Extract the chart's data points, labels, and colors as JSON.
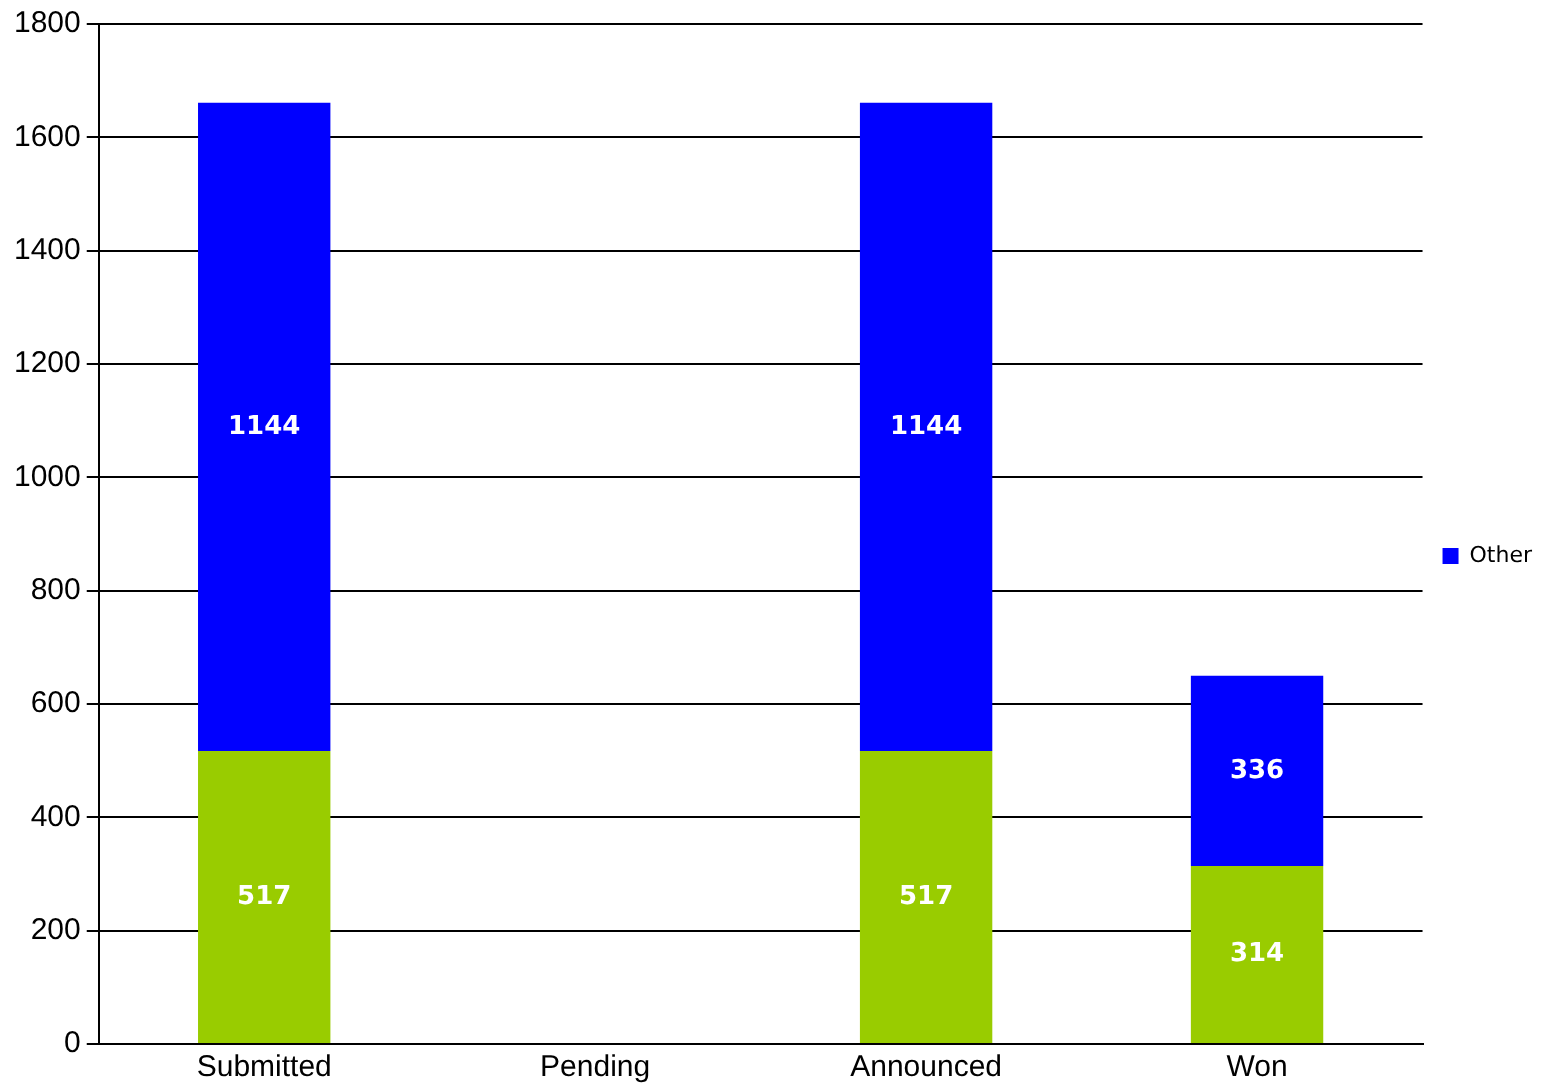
{
  "chart_data": {
    "type": "bar",
    "stacked": true,
    "categories": [
      "Submitted",
      "Pending",
      "Announced",
      "Won"
    ],
    "series": [
      {
        "color": "#99cc00",
        "values": [
          517,
          0,
          517,
          314
        ],
        "value_labels": [
          "517",
          null,
          "517",
          "314"
        ]
      },
      {
        "name": "Other",
        "color": "#0000ff",
        "values": [
          1144,
          0,
          1144,
          336
        ],
        "value_labels": [
          "1144",
          null,
          "1144",
          "336"
        ]
      }
    ],
    "ylim": [
      0,
      1800
    ],
    "yticks": [
      0,
      200,
      400,
      600,
      800,
      1000,
      1200,
      1400,
      1600,
      1800
    ],
    "grid": "y",
    "legend": "right"
  }
}
